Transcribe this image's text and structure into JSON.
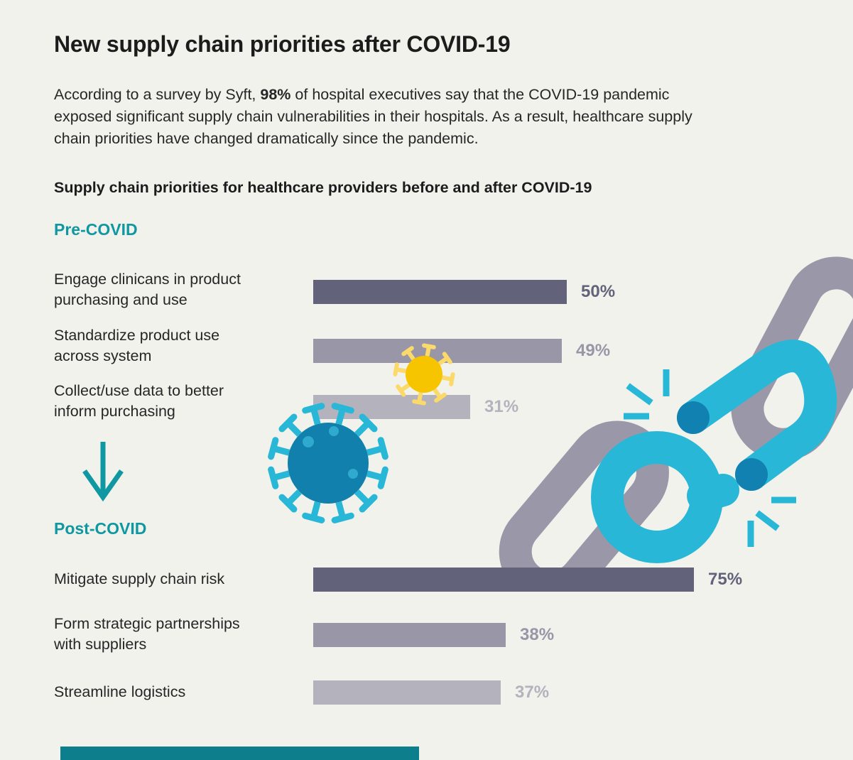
{
  "title": "New supply chain priorities after COVID-19",
  "intro": {
    "prefix": "According to a survey by Syft, ",
    "stat": "98%",
    "suffix": " of hospital executives say that the COVID-19 pandemic exposed significant supply chain vulnerabilities in their hospitals. As a result, healthcare supply chain priorities have changed dramatically since the pandemic."
  },
  "subtitle": "Supply chain priorities for healthcare providers before and after COVID-19",
  "chart_data": {
    "type": "bar",
    "orientation": "horizontal",
    "unit": "%",
    "xlim": [
      0,
      100
    ],
    "grid": false,
    "legend": false,
    "groups": [
      {
        "label": "Pre-COVID",
        "categories": [
          "Engage clinicans in product purchasing and use",
          "Standardize product use across system",
          "Collect/use data to better inform purchasing"
        ],
        "values": [
          50,
          49,
          31
        ],
        "value_labels": [
          "50%",
          "49%",
          "31%"
        ]
      },
      {
        "label": "Post-COVID",
        "categories": [
          "Mitigate supply chain risk",
          "Form strategic partnerships with suppliers",
          "Streamline logistics"
        ],
        "values": [
          75,
          38,
          37
        ],
        "value_labels": [
          "75%",
          "38%",
          "37%"
        ]
      }
    ],
    "bar_colors": [
      "#62627a",
      "#9896a7",
      "#b3b2bd"
    ]
  },
  "sections": [
    {
      "label": "Pre-COVID",
      "rows": [
        {
          "lines": [
            "Engage clinicans in product",
            "purchasing and use"
          ],
          "value": 50,
          "value_label": "50%",
          "color": "#62627a"
        },
        {
          "lines": [
            "Standardize product use",
            "across system"
          ],
          "value": 49,
          "value_label": "49%",
          "color": "#9896a7"
        },
        {
          "lines": [
            "Collect/use data to better",
            "inform purchasing"
          ],
          "value": 31,
          "value_label": "31%",
          "color": "#b3b2bd"
        }
      ]
    },
    {
      "label": "Post-COVID",
      "rows": [
        {
          "lines": [
            "Mitigate supply chain risk"
          ],
          "value": 75,
          "value_label": "75%",
          "color": "#62627a"
        },
        {
          "lines": [
            "Form strategic partnerships",
            "with suppliers"
          ],
          "value": 38,
          "value_label": "38%",
          "color": "#9896a7"
        },
        {
          "lines": [
            "Streamline logistics"
          ],
          "value": 37,
          "value_label": "37%",
          "color": "#b3b2bd"
        }
      ]
    }
  ],
  "icons": {
    "down_arrow": "down-arrow-icon",
    "virus_large": "coronavirus-icon-large",
    "virus_small": "coronavirus-icon-small",
    "chain": "broken-chain-illustration"
  },
  "colors": {
    "background": "#f2f2ec",
    "teal_accent": "#0f98a2",
    "chain_gray": "#9a98a8",
    "chain_cyan": "#28b7d7",
    "chain_cap_blue": "#1181b2",
    "virus_blue": "#1180ac",
    "virus_dot": "#2fa9ce",
    "virus_yellow": "#f6c500",
    "virus_yellow_spike": "#fbd96b",
    "footer_bar": "#0d7e8c"
  }
}
